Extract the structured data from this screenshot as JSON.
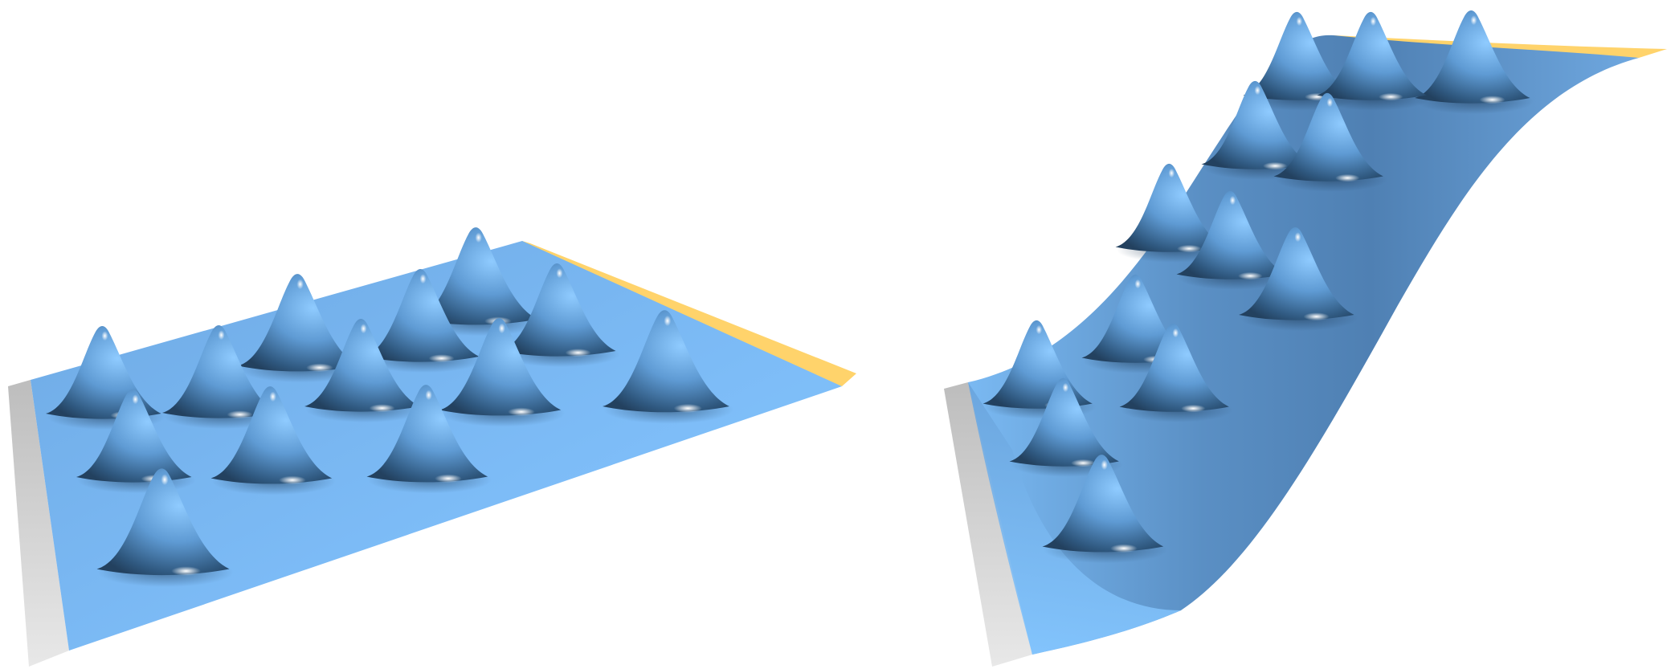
{
  "colors": {
    "surface_light": "#82c6ff",
    "surface_mid": "#6aaae8",
    "surface_dark": "#3f6f9c",
    "edge_gray_light": "#e6e6e6",
    "edge_gray_dark": "#bdbdbd",
    "edge_yellow": "#ffd36b",
    "highlight": "#ffffff",
    "background": "#ffffff"
  },
  "panels": [
    {
      "id": "left",
      "surface": "flat-plane",
      "bump_count": 13
    },
    {
      "id": "right",
      "surface": "s-curved-sheet",
      "bump_count": 13
    }
  ]
}
